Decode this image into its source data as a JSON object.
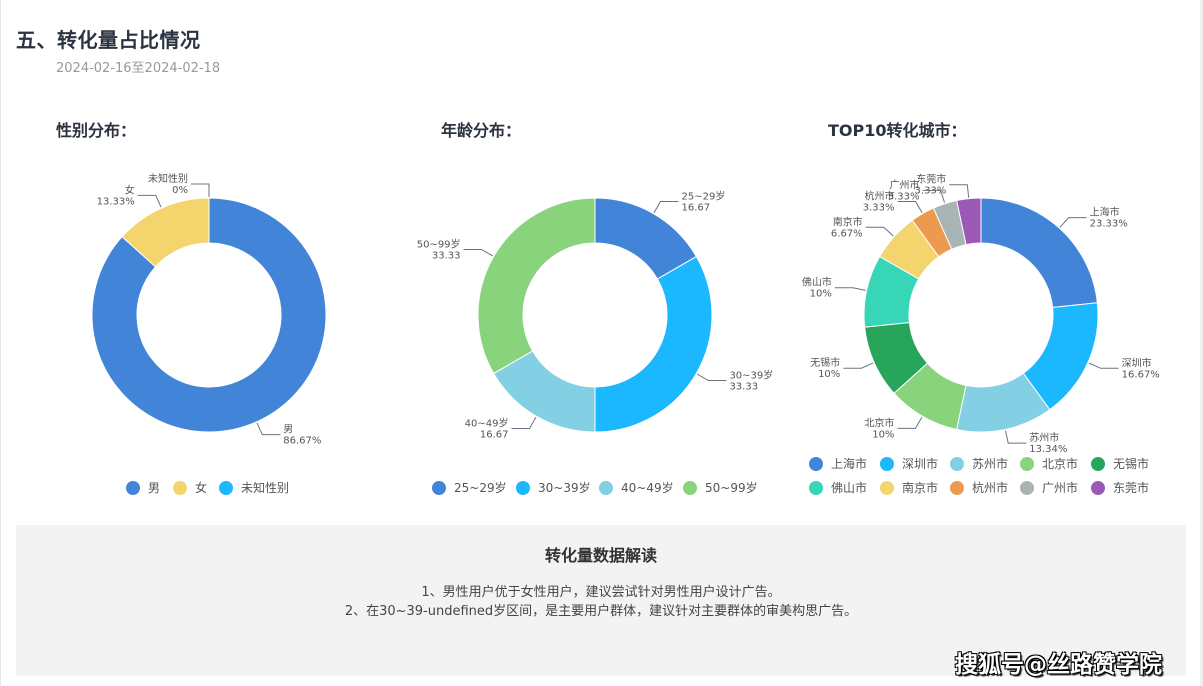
{
  "header": {
    "title": "五、转化量占比情况",
    "date_range": "2024-02-16至2024-02-18"
  },
  "chart_data": [
    {
      "type": "pie",
      "variant": "donut",
      "title": "性别分布：",
      "categories": [
        "男",
        "女",
        "未知性别"
      ],
      "values": [
        86.67,
        13.33,
        0
      ],
      "labels": [
        "男\n86.67%",
        "女\n13.33%",
        "未知性别\n0%"
      ],
      "colors": [
        "#4285d8",
        "#f4d46d",
        "#1bb7ff"
      ],
      "legend_position": "bottom"
    },
    {
      "type": "pie",
      "variant": "donut",
      "title": "年龄分布：",
      "categories": [
        "25~29岁",
        "30~39岁",
        "40~49岁",
        "50~99岁"
      ],
      "values": [
        16.67,
        33.33,
        16.67,
        33.33
      ],
      "labels": [
        "25~29岁\n16.67",
        "30~39岁\n33.33",
        "40~49岁\n16.67",
        "50~99岁\n33.33"
      ],
      "colors": [
        "#4285d8",
        "#1bb7ff",
        "#83cfe3",
        "#88d37b"
      ],
      "legend_position": "bottom"
    },
    {
      "type": "pie",
      "variant": "donut",
      "title": "TOP10转化城市：",
      "categories": [
        "上海市",
        "深圳市",
        "苏州市",
        "北京市",
        "无锡市",
        "佛山市",
        "南京市",
        "杭州市",
        "广州市",
        "东莞市"
      ],
      "values": [
        23.33,
        16.67,
        13.34,
        10,
        10,
        10,
        6.67,
        3.33,
        3.33,
        3.33
      ],
      "labels": [
        "上海市\n23.33%",
        "深圳市\n16.67%",
        "苏州市\n13.34%",
        "北京市\n10%",
        "无锡市\n10%",
        "佛山市\n10%",
        "南京市\n6.67%",
        "杭州市\n3.33%",
        "广州市\n3.33%",
        "东莞市\n3.33%"
      ],
      "colors": [
        "#4285d8",
        "#1bb7ff",
        "#83cfe3",
        "#88d37b",
        "#27a55b",
        "#37d6b6",
        "#f4d46d",
        "#eb9a4e",
        "#a9b5b5",
        "#9b59b6"
      ],
      "legend_position": "bottom"
    }
  ],
  "summary": {
    "title": "转化量数据解读",
    "lines": [
      "1、男性用户优于女性用户，建议尝试针对男性用户设计广告。",
      "2、在30~39-undefined岁区间，是主要用户群体，建议针对主要群体的审美构思广告。"
    ]
  },
  "watermark": "搜狐号@丝路赞学院"
}
